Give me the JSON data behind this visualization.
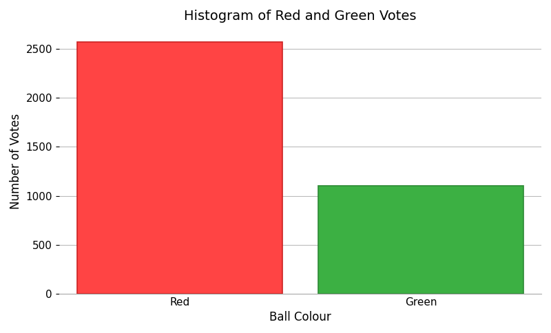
{
  "categories": [
    "Red",
    "Green"
  ],
  "values": [
    2570,
    1100
  ],
  "bar_colors": [
    "#ff4444",
    "#3cb043"
  ],
  "bar_edgecolors": [
    "#cc2222",
    "#2d8a35"
  ],
  "title": "Histogram of Red and Green Votes",
  "xlabel": "Ball Colour",
  "ylabel": "Number of Votes",
  "ylim": [
    0,
    2700
  ],
  "yticks": [
    0,
    500,
    1000,
    1500,
    2000,
    2500
  ],
  "grid_color": "#bbbbbb",
  "background_color": "#ffffff",
  "title_fontsize": 14,
  "label_fontsize": 12,
  "tick_fontsize": 11,
  "bar_width": 0.85
}
